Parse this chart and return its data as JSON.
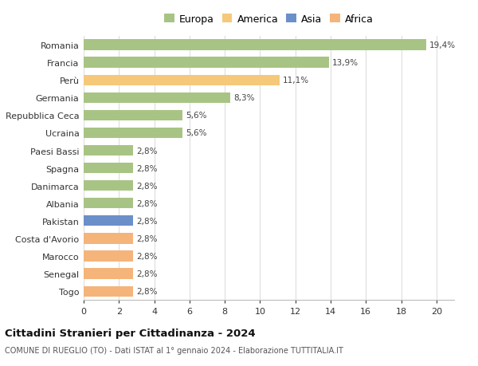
{
  "countries": [
    "Romania",
    "Francia",
    "Perù",
    "Germania",
    "Repubblica Ceca",
    "Ucraina",
    "Paesi Bassi",
    "Spagna",
    "Danimarca",
    "Albania",
    "Pakistan",
    "Costa d'Avorio",
    "Marocco",
    "Senegal",
    "Togo"
  ],
  "values": [
    19.4,
    13.9,
    11.1,
    8.3,
    5.6,
    5.6,
    2.8,
    2.8,
    2.8,
    2.8,
    2.8,
    2.8,
    2.8,
    2.8,
    2.8
  ],
  "labels": [
    "19,4%",
    "13,9%",
    "11,1%",
    "8,3%",
    "5,6%",
    "5,6%",
    "2,8%",
    "2,8%",
    "2,8%",
    "2,8%",
    "2,8%",
    "2,8%",
    "2,8%",
    "2,8%",
    "2,8%"
  ],
  "colors": [
    "#a8c484",
    "#a8c484",
    "#f5c87a",
    "#a8c484",
    "#a8c484",
    "#a8c484",
    "#a8c484",
    "#a8c484",
    "#a8c484",
    "#a8c484",
    "#6b8fc9",
    "#f5b47a",
    "#f5b47a",
    "#f5b47a",
    "#f5b47a"
  ],
  "legend_labels": [
    "Europa",
    "America",
    "Asia",
    "Africa"
  ],
  "legend_colors": [
    "#a8c484",
    "#f5c87a",
    "#6b8fc9",
    "#f5b47a"
  ],
  "title": "Cittadini Stranieri per Cittadinanza - 2024",
  "subtitle": "COMUNE DI RUEGLIO (TO) - Dati ISTAT al 1° gennaio 2024 - Elaborazione TUTTITALIA.IT",
  "xlim": [
    0,
    21
  ],
  "xticks": [
    0,
    2,
    4,
    6,
    8,
    10,
    12,
    14,
    16,
    18,
    20
  ],
  "background_color": "#ffffff",
  "grid_color": "#dddddd",
  "bar_height": 0.6
}
